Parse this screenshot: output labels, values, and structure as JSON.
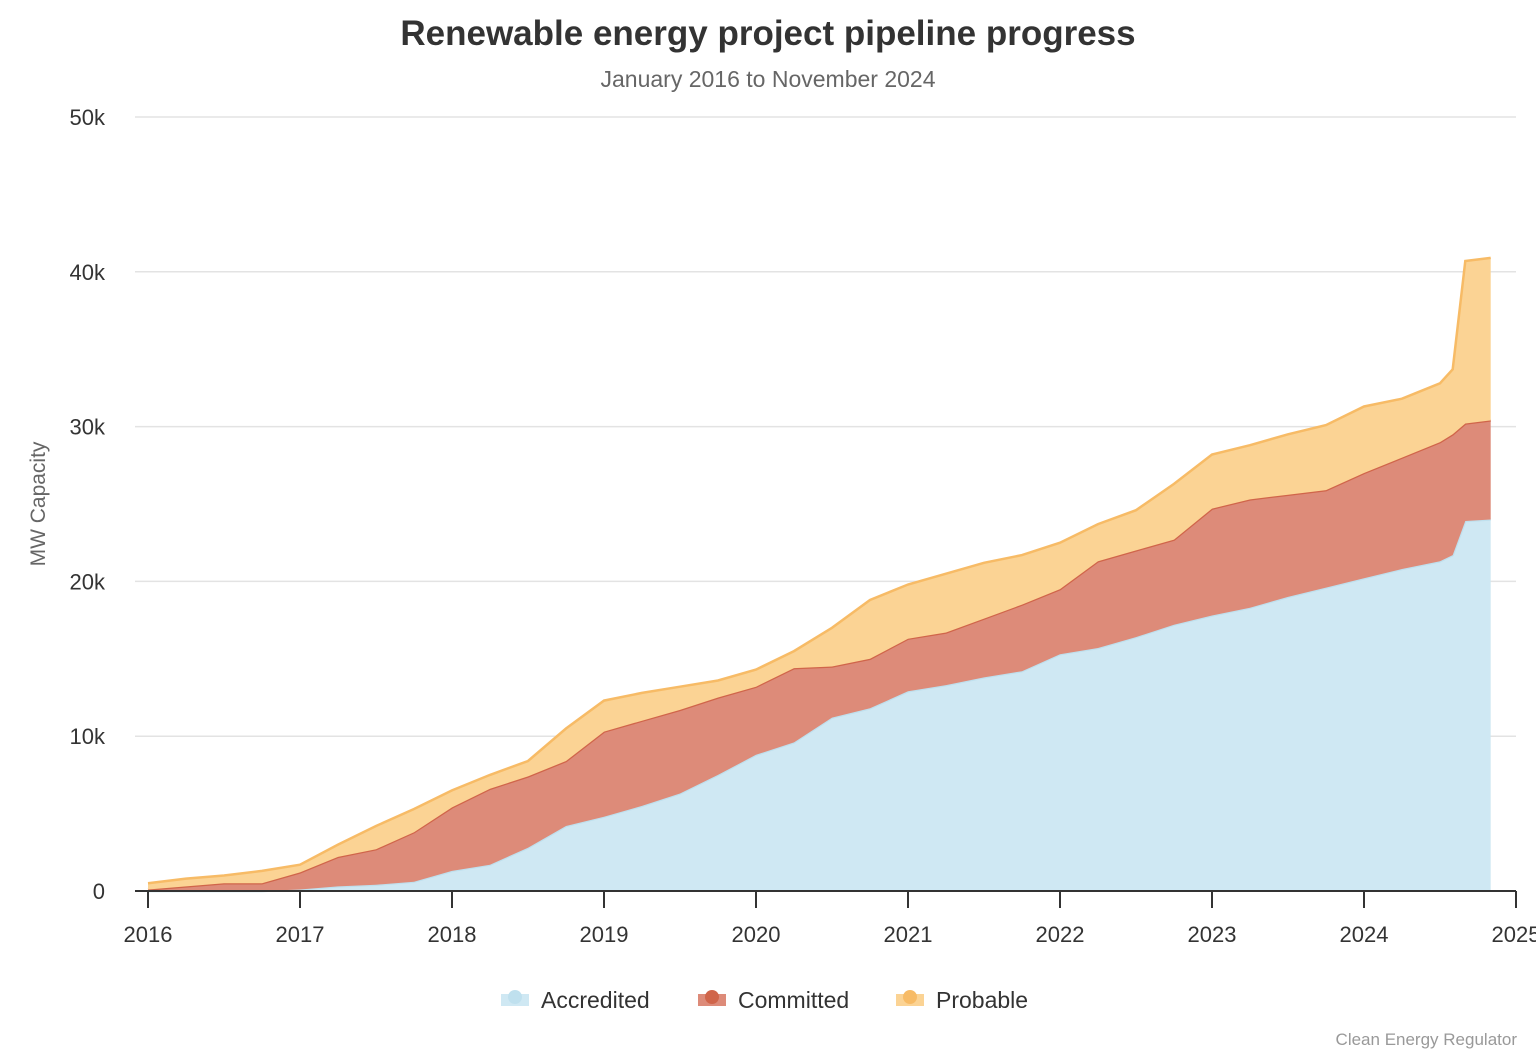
{
  "chart_data": {
    "type": "area",
    "stacked": true,
    "title": "Renewable energy project pipeline progress",
    "subtitle": "January 2016 to November 2024",
    "xlabel": "",
    "ylabel": "MW Capacity",
    "ylim": [
      0,
      50000
    ],
    "yticks": [
      0,
      10000,
      20000,
      30000,
      40000,
      50000
    ],
    "ytick_labels": [
      "0",
      "10k",
      "20k",
      "30k",
      "40k",
      "50k"
    ],
    "xticks": [
      "2016",
      "2017",
      "2018",
      "2019",
      "2020",
      "2021",
      "2022",
      "2023",
      "2024",
      "2025"
    ],
    "grid": true,
    "legend": "bottom",
    "x": [
      "2016-01",
      "2016-04",
      "2016-07",
      "2016-10",
      "2017-01",
      "2017-04",
      "2017-07",
      "2017-10",
      "2018-01",
      "2018-04",
      "2018-07",
      "2018-10",
      "2019-01",
      "2019-04",
      "2019-07",
      "2019-10",
      "2020-01",
      "2020-04",
      "2020-07",
      "2020-10",
      "2021-01",
      "2021-04",
      "2021-07",
      "2021-10",
      "2022-01",
      "2022-04",
      "2022-07",
      "2022-10",
      "2023-01",
      "2023-04",
      "2023-07",
      "2023-10",
      "2024-01",
      "2024-04",
      "2024-07",
      "2024-08",
      "2024-09",
      "2024-11"
    ],
    "series": [
      {
        "name": "Accredited",
        "color": "#cfe8f3",
        "line": "#bfe0ee",
        "values": [
          0,
          0,
          0,
          0,
          100,
          300,
          400,
          600,
          1300,
          1700,
          2800,
          4200,
          4800,
          5500,
          6300,
          7500,
          8800,
          9600,
          11200,
          11800,
          12900,
          13300,
          13800,
          14200,
          15300,
          15700,
          16400,
          17200,
          17800,
          18300,
          19000,
          19600,
          20200,
          20800,
          21300,
          21700,
          23900,
          24000
        ]
      },
      {
        "name": "Committed",
        "color": "#dd8b79",
        "line": "#d0654a",
        "values": [
          100,
          300,
          500,
          500,
          1100,
          1900,
          2300,
          3200,
          4100,
          4900,
          4600,
          4200,
          5500,
          5500,
          5400,
          5000,
          4400,
          4800,
          3300,
          3200,
          3400,
          3400,
          3800,
          4300,
          4200,
          5600,
          5600,
          5500,
          6900,
          7000,
          6600,
          6300,
          6800,
          7200,
          7700,
          7800,
          6300,
          6400
        ]
      },
      {
        "name": "Probable",
        "color": "#fbd394",
        "line": "#f7bb66",
        "values": [
          400,
          500,
          500,
          800,
          500,
          800,
          1500,
          1500,
          1100,
          900,
          1000,
          2100,
          2000,
          1800,
          1500,
          1100,
          1100,
          1100,
          2500,
          3800,
          3500,
          3800,
          3600,
          3200,
          3000,
          2400,
          2600,
          3600,
          3500,
          3500,
          3900,
          4200,
          4300,
          3800,
          3800,
          4200,
          10500,
          10500
        ]
      }
    ]
  },
  "source": "Clean Energy Regulator"
}
